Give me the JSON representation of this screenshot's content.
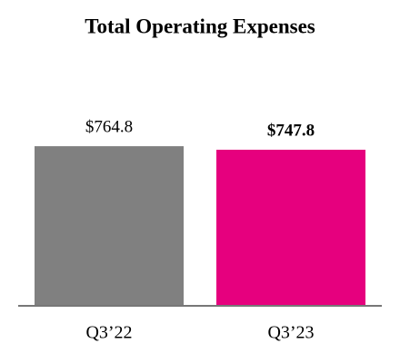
{
  "chart_data": {
    "type": "bar",
    "title": "Total Operating Expenses",
    "categories": [
      "Q3’22",
      "Q3’23"
    ],
    "values": [
      764.8,
      747.8
    ],
    "value_labels": [
      "$764.8",
      "$747.8"
    ],
    "value_label_bold": [
      false,
      true
    ],
    "colors": [
      "#808080",
      "#e6007e"
    ],
    "ylim": [
      0,
      1000
    ]
  }
}
